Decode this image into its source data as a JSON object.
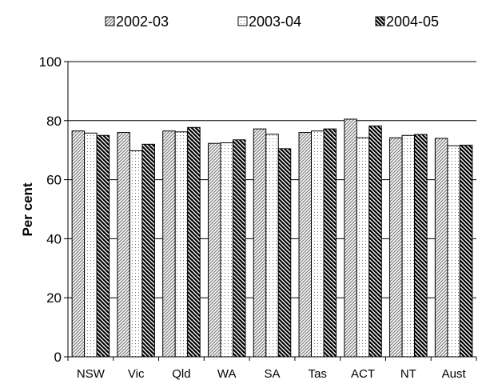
{
  "chart_data": {
    "type": "bar",
    "categories": [
      "NSW",
      "Vic",
      "Qld",
      "WA",
      "SA",
      "Tas",
      "ACT",
      "NT",
      "Aust"
    ],
    "series": [
      {
        "name": "2002-03",
        "pattern": "diagonal-light",
        "values": [
          76.5,
          76.0,
          76.5,
          72.3,
          77.2,
          76.0,
          80.5,
          74.2,
          74.0
        ]
      },
      {
        "name": "2003-04",
        "pattern": "dotted",
        "values": [
          75.8,
          69.8,
          76.2,
          72.5,
          75.4,
          76.5,
          74.2,
          75.0,
          71.5
        ]
      },
      {
        "name": "2004-05",
        "pattern": "diagonal-dark",
        "values": [
          75.0,
          72.0,
          77.7,
          73.5,
          70.5,
          77.2,
          78.2,
          75.3,
          71.7
        ]
      }
    ],
    "ylabel": "Per cent",
    "xlabel": "",
    "ylim": [
      0,
      100
    ],
    "yticks": [
      0,
      20,
      40,
      60,
      80,
      100
    ],
    "grid": true,
    "legend_position": "top"
  }
}
